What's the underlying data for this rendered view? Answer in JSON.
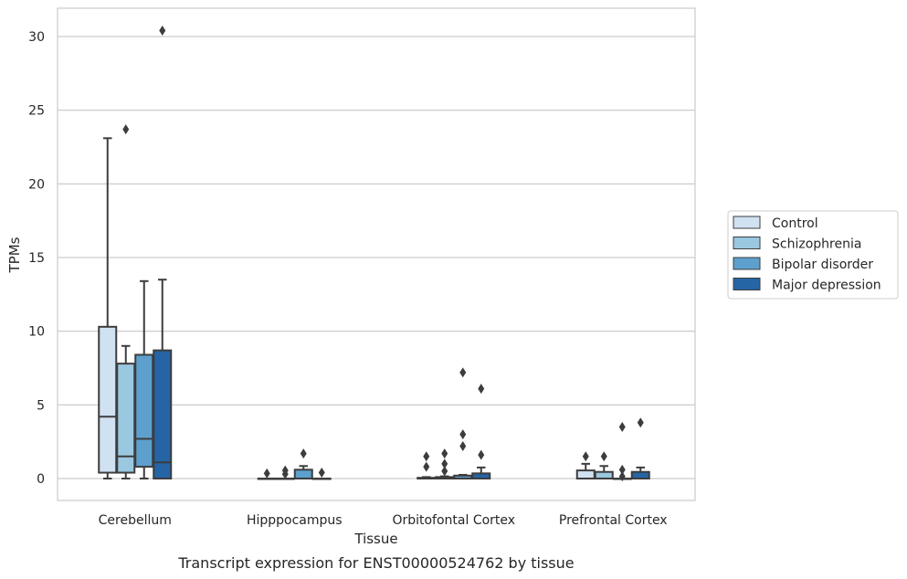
{
  "chart_data": {
    "type": "box",
    "title": "",
    "caption": "Transcript expression for ENST00000524762 by tissue",
    "xlabel": "Tissue",
    "ylabel": "TPMs",
    "ylim": [
      -1.5,
      32
    ],
    "yticks": [
      0,
      5,
      10,
      15,
      20,
      25,
      30
    ],
    "grid": "horizontal",
    "legend_position": "right",
    "categories": [
      "Cerebellum",
      "Hipppocampus",
      "Orbitofontal Cortex",
      "Prefrontal Cortex"
    ],
    "series": [
      {
        "name": "Control",
        "color": "#d0e1f2",
        "boxes": [
          {
            "whislo": 0,
            "q1": 0.4,
            "med": 4.2,
            "q3": 10.3,
            "whishi": 23.1,
            "fliers": []
          },
          {
            "whislo": 0,
            "q1": 0,
            "med": 0,
            "q3": 0,
            "whishi": 0,
            "fliers": [
              0.35
            ]
          },
          {
            "whislo": 0,
            "q1": 0,
            "med": 0,
            "q3": 0.05,
            "whishi": 0.1,
            "fliers": [
              0.8,
              1.5
            ]
          },
          {
            "whislo": 0,
            "q1": 0,
            "med": 0,
            "q3": 0.55,
            "whishi": 1.0,
            "fliers": [
              1.5
            ]
          }
        ]
      },
      {
        "name": "Schizophrenia",
        "color": "#9ac8e0",
        "boxes": [
          {
            "whislo": 0,
            "q1": 0.4,
            "med": 1.5,
            "q3": 7.8,
            "whishi": 9.0,
            "fliers": [
              23.7
            ]
          },
          {
            "whislo": 0,
            "q1": 0,
            "med": 0,
            "q3": 0,
            "whishi": 0,
            "fliers": [
              0.3,
              0.55
            ]
          },
          {
            "whislo": 0,
            "q1": 0,
            "med": 0,
            "q3": 0.1,
            "whishi": 0.15,
            "fliers": [
              0.5,
              1.0,
              1.7
            ]
          },
          {
            "whislo": 0,
            "q1": 0,
            "med": 0,
            "q3": 0.45,
            "whishi": 0.85,
            "fliers": [
              1.5
            ]
          }
        ]
      },
      {
        "name": "Bipolar disorder",
        "color": "#5da0cd",
        "boxes": [
          {
            "whislo": 0,
            "q1": 0.8,
            "med": 2.7,
            "q3": 8.4,
            "whishi": 13.4,
            "fliers": []
          },
          {
            "whislo": 0,
            "q1": 0,
            "med": 0,
            "q3": 0.6,
            "whishi": 0.85,
            "fliers": [
              1.7
            ]
          },
          {
            "whislo": 0,
            "q1": 0,
            "med": 0,
            "q3": 0.2,
            "whishi": 0.25,
            "fliers": [
              2.2,
              3.0,
              7.2
            ]
          },
          {
            "whislo": 0,
            "q1": 0,
            "med": 0,
            "q3": 0,
            "whishi": 0,
            "fliers": [
              0.15,
              0.6,
              3.5
            ]
          }
        ]
      },
      {
        "name": "Major depression",
        "color": "#2565a6",
        "boxes": [
          {
            "whislo": 0,
            "q1": 0,
            "med": 1.1,
            "q3": 8.7,
            "whishi": 13.5,
            "fliers": [
              30.4
            ]
          },
          {
            "whislo": 0,
            "q1": 0,
            "med": 0,
            "q3": 0,
            "whishi": 0,
            "fliers": [
              0.4
            ]
          },
          {
            "whislo": 0,
            "q1": 0,
            "med": 0,
            "q3": 0.35,
            "whishi": 0.75,
            "fliers": [
              1.6,
              6.1
            ]
          },
          {
            "whislo": 0,
            "q1": 0,
            "med": 0,
            "q3": 0.45,
            "whishi": 0.75,
            "fliers": [
              3.8
            ]
          }
        ]
      }
    ]
  }
}
